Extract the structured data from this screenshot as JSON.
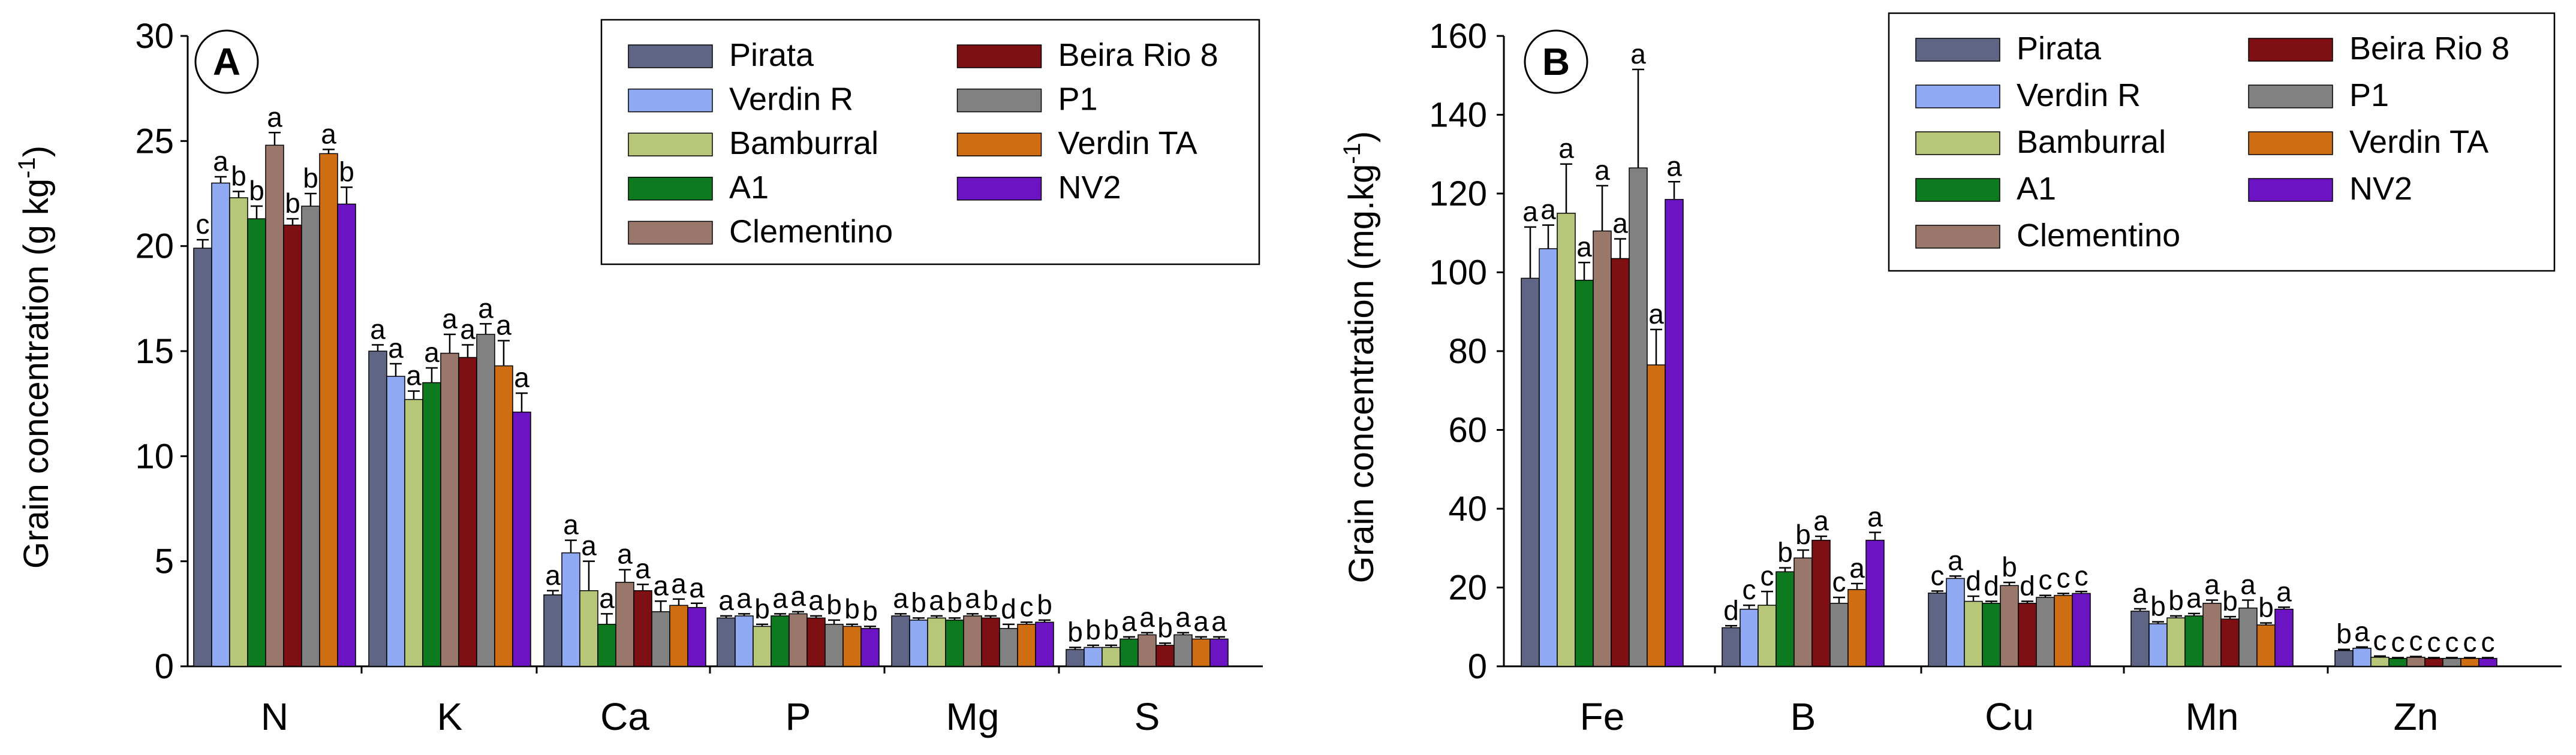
{
  "figure": {
    "panels": [
      "A",
      "B"
    ]
  },
  "series_colors": {
    "Pirata": "#5e6585",
    "Verdin R": "#8fa9f3",
    "Bamburral": "#b7c77a",
    "A1": "#0d7a20",
    "Clementino": "#9a776b",
    "Beira Rio 8": "#7e0f12",
    "P1": "#818181",
    "Verdin TA": "#cf6d12",
    "NV2": "#6c13c4"
  },
  "chart_data": [
    {
      "type": "bar",
      "panel_label": "A",
      "ylabel_main": "Grain concentration (g kg",
      "ylabel_sup": "-1",
      "ylabel_end": ")",
      "ylim": [
        0,
        30
      ],
      "yticks": [
        0,
        5,
        10,
        15,
        20,
        25,
        30
      ],
      "categories": [
        "N",
        "K",
        "Ca",
        "P",
        "Mg",
        "S"
      ],
      "legend": [
        "Pirata",
        "Verdin R",
        "Bamburral",
        "A1",
        "Clementino",
        "Beira Rio 8",
        "P1",
        "Verdin TA",
        "NV2"
      ],
      "legend_position": "top-right",
      "series": [
        {
          "name": "Pirata",
          "values": [
            19.9,
            15.0,
            3.4,
            2.3,
            2.4,
            0.8
          ],
          "errors": [
            0.4,
            0.3,
            0.2,
            0.1,
            0.1,
            0.1
          ],
          "letters": [
            "c",
            "a",
            "a",
            "a",
            "a",
            "b"
          ]
        },
        {
          "name": "Verdin R",
          "values": [
            23.0,
            13.8,
            5.4,
            2.4,
            2.2,
            0.9
          ],
          "errors": [
            0.3,
            0.6,
            0.6,
            0.1,
            0.1,
            0.1
          ],
          "letters": [
            "a",
            "a",
            "a",
            "a",
            "b",
            "b"
          ]
        },
        {
          "name": "Bamburral",
          "values": [
            22.3,
            12.7,
            3.6,
            1.9,
            2.3,
            0.9
          ],
          "errors": [
            0.3,
            0.4,
            1.4,
            0.1,
            0.1,
            0.1
          ],
          "letters": [
            "b",
            "a",
            "a",
            "b",
            "a",
            "b"
          ]
        },
        {
          "name": "A1",
          "values": [
            21.3,
            13.5,
            2.0,
            2.4,
            2.2,
            1.3
          ],
          "errors": [
            0.6,
            0.7,
            0.5,
            0.1,
            0.1,
            0.1
          ],
          "letters": [
            "b",
            "a",
            "a",
            "a",
            "b",
            "a"
          ]
        },
        {
          "name": "Clementino",
          "values": [
            24.8,
            14.9,
            4.0,
            2.5,
            2.4,
            1.5
          ],
          "errors": [
            0.6,
            0.9,
            0.6,
            0.1,
            0.1,
            0.1
          ],
          "letters": [
            "a",
            "a",
            "a",
            "a",
            "a",
            "a"
          ]
        },
        {
          "name": "Beira Rio 8",
          "values": [
            21.0,
            14.7,
            3.6,
            2.3,
            2.3,
            1.0
          ],
          "errors": [
            0.3,
            0.6,
            0.3,
            0.1,
            0.1,
            0.1
          ],
          "letters": [
            "b",
            "a",
            "a",
            "a",
            "b",
            "b"
          ]
        },
        {
          "name": "P1",
          "values": [
            21.9,
            15.8,
            2.6,
            2.0,
            1.8,
            1.5
          ],
          "errors": [
            0.6,
            0.5,
            0.5,
            0.2,
            0.2,
            0.1
          ],
          "letters": [
            "b",
            "a",
            "a",
            "b",
            "d",
            "a"
          ]
        },
        {
          "name": "Verdin TA",
          "values": [
            24.4,
            14.3,
            2.9,
            1.9,
            2.0,
            1.3
          ],
          "errors": [
            0.2,
            1.2,
            0.3,
            0.1,
            0.1,
            0.1
          ],
          "letters": [
            "a",
            "a",
            "a",
            "b",
            "c",
            "a"
          ]
        },
        {
          "name": "NV2",
          "values": [
            22.0,
            12.1,
            2.8,
            1.8,
            2.1,
            1.3
          ],
          "errors": [
            0.8,
            0.9,
            0.2,
            0.1,
            0.1,
            0.1
          ],
          "letters": [
            "b",
            "a",
            "a",
            "b",
            "b",
            "a"
          ]
        }
      ]
    },
    {
      "type": "bar",
      "panel_label": "B",
      "ylabel_main": "Grain concentration (mg.kg",
      "ylabel_sup": "-1",
      "ylabel_end": ")",
      "ylim": [
        0,
        160
      ],
      "yticks": [
        0,
        20,
        40,
        60,
        80,
        100,
        120,
        140,
        160
      ],
      "categories": [
        "Fe",
        "B",
        "Cu",
        "Mn",
        "Zn"
      ],
      "legend": [
        "Pirata",
        "Verdin R",
        "Bamburral",
        "A1",
        "Clementino",
        "Beira Rio 8",
        "P1",
        "Verdin TA",
        "NV2"
      ],
      "legend_position": "top-right",
      "series": [
        {
          "name": "Pirata",
          "values": [
            98.5,
            9.8,
            18.6,
            14.0,
            4.0
          ],
          "errors": [
            13.0,
            0.5,
            0.5,
            0.6,
            0.3
          ],
          "letters": [
            "a",
            "d",
            "c",
            "a",
            "b"
          ]
        },
        {
          "name": "Verdin R",
          "values": [
            106.0,
            14.5,
            22.3,
            10.8,
            4.6
          ],
          "errors": [
            6.0,
            1.0,
            0.6,
            0.5,
            0.3
          ],
          "letters": [
            "a",
            "c",
            "a",
            "b",
            "a"
          ]
        },
        {
          "name": "Bamburral",
          "values": [
            115.0,
            15.5,
            16.5,
            12.3,
            2.3
          ],
          "errors": [
            12.5,
            3.5,
            1.3,
            0.5,
            0.3
          ],
          "letters": [
            "a",
            "c",
            "d",
            "b",
            "c"
          ]
        },
        {
          "name": "A1",
          "values": [
            98.0,
            24.0,
            16.0,
            12.8,
            2.0
          ],
          "errors": [
            4.5,
            1.0,
            0.5,
            0.6,
            0.2
          ],
          "letters": [
            "a",
            "b",
            "d",
            "a",
            "c"
          ]
        },
        {
          "name": "Clementino",
          "values": [
            110.5,
            27.5,
            20.5,
            16.0,
            2.3
          ],
          "errors": [
            11.5,
            2.0,
            0.8,
            0.8,
            0.2
          ],
          "letters": [
            "a",
            "b",
            "b",
            "a",
            "c"
          ]
        },
        {
          "name": "Beira Rio 8",
          "values": [
            103.5,
            32.0,
            16.0,
            12.0,
            2.0
          ],
          "errors": [
            5.0,
            1.0,
            0.5,
            0.6,
            0.2
          ],
          "letters": [
            "a",
            "a",
            "d",
            "b",
            "c"
          ]
        },
        {
          "name": "P1",
          "values": [
            126.5,
            16.0,
            17.5,
            14.8,
            2.0
          ],
          "errors": [
            25.0,
            1.5,
            0.5,
            2.0,
            0.2
          ],
          "letters": [
            "a",
            "c",
            "c",
            "a",
            "c"
          ]
        },
        {
          "name": "Verdin TA",
          "values": [
            76.5,
            19.5,
            18.0,
            10.5,
            2.0
          ],
          "errors": [
            9.0,
            1.5,
            0.5,
            0.5,
            0.2
          ],
          "letters": [
            "a",
            "a",
            "c",
            "b",
            "c"
          ]
        },
        {
          "name": "NV2",
          "values": [
            118.5,
            32.0,
            18.5,
            14.5,
            2.0
          ],
          "errors": [
            4.5,
            2.0,
            0.5,
            0.5,
            0.2
          ],
          "letters": [
            "a",
            "a",
            "c",
            "a",
            "c"
          ]
        }
      ]
    }
  ]
}
